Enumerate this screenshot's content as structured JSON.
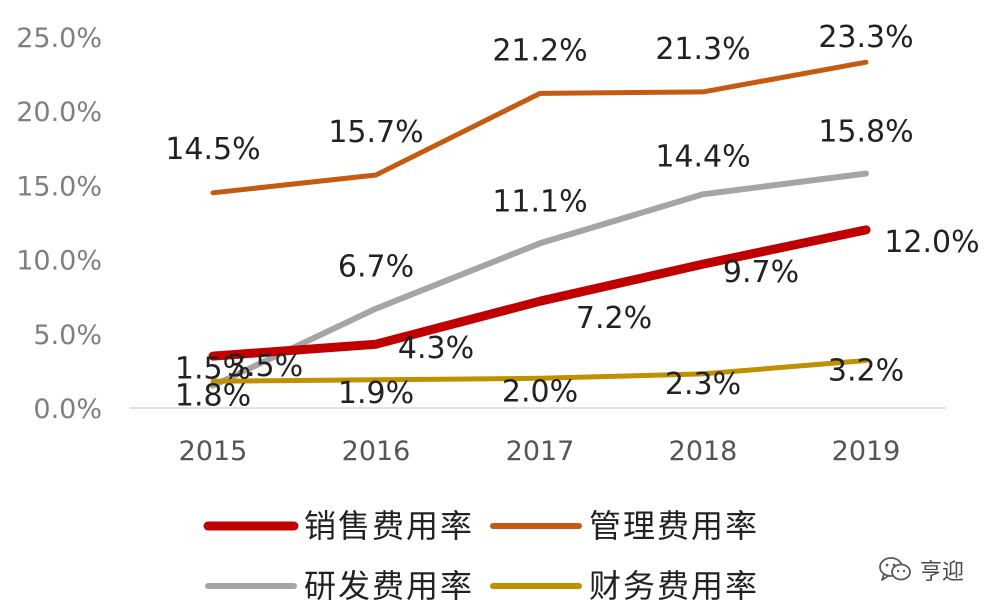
{
  "chart_data": {
    "type": "line",
    "categories": [
      "2015",
      "2016",
      "2017",
      "2018",
      "2019"
    ],
    "y_ticks": [
      "0.0%",
      "5.0%",
      "10.0%",
      "15.0%",
      "20.0%",
      "25.0%"
    ],
    "ylim": [
      0,
      25
    ],
    "grid": false,
    "legend_position": "bottom",
    "series": [
      {
        "name": "销售费用率",
        "color": "#c00000",
        "values": [
          3.5,
          4.3,
          7.2,
          9.7,
          12.0
        ],
        "labels": [
          "3.5%",
          "4.3%",
          "7.2%",
          "9.7%",
          "12.0%"
        ]
      },
      {
        "name": "管理费用率",
        "color": "#c55a11",
        "values": [
          14.5,
          15.7,
          21.2,
          21.3,
          23.3
        ],
        "labels": [
          "14.5%",
          "15.7%",
          "21.2%",
          "21.3%",
          "23.3%"
        ]
      },
      {
        "name": "研发费用率",
        "color": "#a5a5a5",
        "values": [
          1.5,
          6.7,
          11.1,
          14.4,
          15.8
        ],
        "labels": [
          "1.5%",
          "6.7%",
          "11.1%",
          "14.4%",
          "15.8%"
        ]
      },
      {
        "name": "财务费用率",
        "color": "#bf9000",
        "values": [
          1.8,
          1.9,
          2.0,
          2.3,
          3.2
        ],
        "labels": [
          "1.8%",
          "1.9%",
          "2.0%",
          "2.3%",
          "3.2%"
        ]
      }
    ]
  },
  "watermark": {
    "text": "亨迎",
    "icon": "wechat-icon"
  }
}
